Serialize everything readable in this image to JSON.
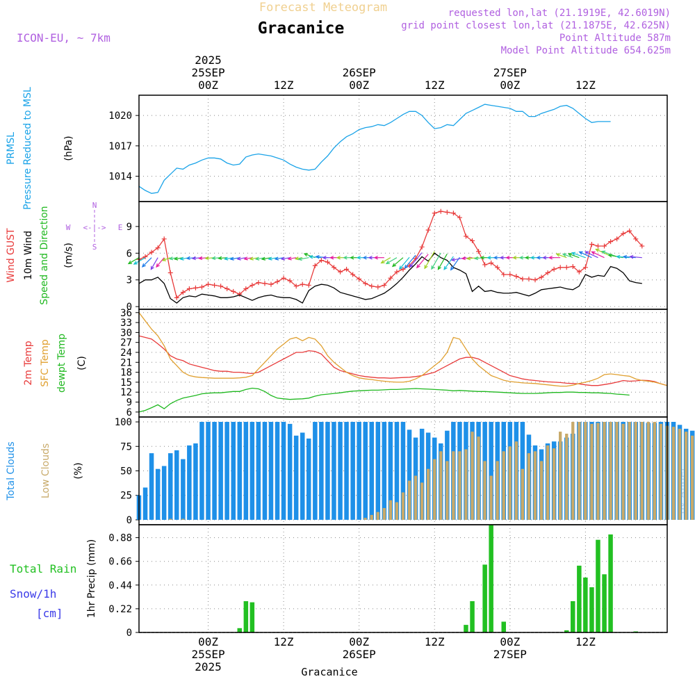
{
  "colors": {
    "pressure": "#1aa3e8",
    "gust": "#e83a3a",
    "wind": "#000000",
    "direction": "#1fb81f",
    "temp2m": "#e83a3a",
    "sfc_temp": "#e0a030",
    "dewpt": "#1fb81f",
    "total_cloud": "#1e90e8",
    "low_cloud": "#c8aa6a",
    "rain": "#22c022",
    "snow": "#3a3ae8",
    "meta": "#b060e0",
    "title_faint": "#f0d090",
    "model": "#b060e0"
  },
  "header": {
    "title_top": "Forecast Meteogram",
    "station": "Gracanice",
    "model": "ICON-EU, ~ 7km",
    "requested": "requested lon,lat (21.1919E, 42.6019N)",
    "gridpoint": "grid point closest lon,lat (21.1875E, 42.625N)",
    "point_alt": "Point Altitude 587m",
    "model_alt": "Model Point Altitude 654.625m"
  },
  "time_axis": {
    "top_labels": [
      {
        "lines": [
          "2025",
          "25SEP",
          "00Z"
        ],
        "hour": 24
      },
      {
        "lines": [
          "12Z"
        ],
        "hour": 36
      },
      {
        "lines": [
          "26SEP",
          "00Z"
        ],
        "hour": 48
      },
      {
        "lines": [
          "12Z"
        ],
        "hour": 60
      },
      {
        "lines": [
          "27SEP",
          "00Z"
        ],
        "hour": 72
      },
      {
        "lines": [
          "12Z"
        ],
        "hour": 84
      }
    ],
    "bottom_labels": [
      {
        "lines": [
          "00Z",
          "25SEP",
          "2025"
        ],
        "hour": 24
      },
      {
        "lines": [
          "12Z"
        ],
        "hour": 36
      },
      {
        "lines": [
          "00Z",
          "26SEP"
        ],
        "hour": 48
      },
      {
        "lines": [
          "12Z"
        ],
        "hour": 60
      },
      {
        "lines": [
          "00Z",
          "27SEP"
        ],
        "hour": 72
      },
      {
        "lines": [
          "12Z"
        ],
        "hour": 84
      }
    ],
    "footer": "Gracanice"
  },
  "compass": {
    "n": "N",
    "s": "S",
    "w": "W",
    "e": "E",
    "arrow": "<-|->"
  },
  "watermark": "by Angel",
  "chart_data": [
    {
      "type": "line",
      "id": "pressure",
      "ylabel_lines": [
        "PRMSL",
        "Pressure Reduced to MSL"
      ],
      "unit": "(hPa)",
      "ylim": [
        1011.5,
        1022
      ],
      "yticks": [
        1014,
        1017,
        1020
      ],
      "x_start": 13,
      "x_step": 1,
      "series": [
        {
          "name": "PRMSL",
          "values": [
            1013.0,
            1012.6,
            1012.3,
            1012.4,
            1013.6,
            1014.2,
            1014.8,
            1014.7,
            1015.1,
            1015.3,
            1015.6,
            1015.8,
            1015.8,
            1015.7,
            1015.3,
            1015.1,
            1015.2,
            1015.9,
            1016.1,
            1016.2,
            1016.1,
            1016.0,
            1015.8,
            1015.6,
            1015.2,
            1014.9,
            1014.7,
            1014.6,
            1014.7,
            1015.4,
            1016.0,
            1016.8,
            1017.4,
            1017.9,
            1018.2,
            1018.6,
            1018.8,
            1018.9,
            1019.1,
            1019.0,
            1019.3,
            1019.7,
            1020.1,
            1020.4,
            1020.4,
            1020.0,
            1019.3,
            1018.7,
            1018.8,
            1019.1,
            1019.0,
            1019.6,
            1020.2,
            1020.5,
            1020.8,
            1021.1,
            1021.0,
            1020.9,
            1020.8,
            1020.7,
            1020.4,
            1020.4,
            1019.9,
            1019.9,
            1020.2,
            1020.4,
            1020.6,
            1020.9,
            1021.0,
            1020.7,
            1020.2,
            1019.7,
            1019.3,
            1019.4,
            1019.4,
            1019.4
          ]
        }
      ]
    },
    {
      "type": "line",
      "id": "wind",
      "ylabel_lines": [
        "Wind GUST",
        "10m Wind",
        "Speed and Direction"
      ],
      "unit": "(m/s)",
      "ylim": [
        -0.3,
        11.8
      ],
      "yticks": [
        0,
        3,
        6,
        9
      ],
      "x_start": 13,
      "x_step": 1,
      "series": [
        {
          "name": "Wind GUST",
          "values": [
            5.3,
            5.6,
            6.1,
            6.6,
            7.6,
            3.8,
            1.0,
            1.6,
            2.0,
            2.1,
            2.2,
            2.5,
            2.4,
            2.3,
            2.0,
            1.7,
            1.4,
            2.0,
            2.4,
            2.7,
            2.6,
            2.5,
            2.8,
            3.2,
            2.9,
            2.3,
            2.5,
            2.4,
            4.6,
            5.2,
            5.0,
            4.4,
            3.9,
            4.2,
            3.6,
            3.1,
            2.6,
            2.3,
            2.2,
            2.4,
            3.2,
            3.9,
            4.2,
            4.6,
            5.4,
            6.7,
            8.6,
            10.5,
            10.7,
            10.6,
            10.5,
            10.0,
            7.9,
            7.4,
            6.2,
            4.7,
            4.9,
            4.4,
            3.6,
            3.6,
            3.4,
            3.1,
            3.1,
            3.0,
            3.3,
            3.8,
            4.2,
            4.4,
            4.4,
            4.5,
            3.9,
            4.4,
            7.0,
            6.8,
            6.8,
            7.3,
            7.6,
            8.2,
            8.5,
            7.6,
            6.8
          ]
        },
        {
          "name": "10m Wind",
          "values": [
            2.6,
            3.0,
            3.0,
            3.3,
            2.6,
            0.9,
            0.4,
            1.0,
            1.2,
            1.1,
            1.4,
            1.3,
            1.2,
            1.0,
            1.0,
            1.1,
            1.3,
            1.0,
            0.7,
            1.0,
            1.2,
            1.3,
            1.1,
            1.0,
            1.0,
            0.8,
            0.4,
            1.8,
            2.3,
            2.5,
            2.4,
            2.1,
            1.6,
            1.4,
            1.2,
            1.0,
            0.8,
            0.9,
            1.2,
            1.5,
            2.0,
            2.6,
            3.3,
            4.1,
            4.8,
            5.6,
            5.1,
            6.0,
            5.5,
            5.2,
            4.4,
            4.1,
            3.7,
            1.7,
            2.3,
            1.7,
            1.8,
            1.6,
            1.5,
            1.5,
            1.6,
            1.4,
            1.2,
            1.5,
            1.9,
            2.0,
            2.1,
            2.2,
            2.0,
            1.9,
            2.3,
            3.6,
            3.3,
            3.5,
            3.4,
            4.5,
            4.3,
            3.8,
            2.9,
            2.7,
            2.6
          ]
        },
        {
          "name": "Direction (deg, to)",
          "values": [
            60,
            60,
            45,
            30,
            40,
            70,
            80,
            80,
            80,
            85,
            85,
            85,
            85,
            85,
            85,
            80,
            80,
            80,
            80,
            80,
            80,
            80,
            80,
            80,
            80,
            80,
            80,
            80,
            110,
            95,
            95,
            90,
            90,
            90,
            90,
            90,
            90,
            90,
            90,
            90,
            60,
            60,
            50,
            40,
            40,
            40,
            40,
            30,
            30,
            30,
            35,
            35,
            80,
            85,
            85,
            85,
            90,
            90,
            90,
            90,
            90,
            90,
            90,
            90,
            90,
            90,
            90,
            90,
            110,
            110,
            110,
            110,
            115,
            115,
            115,
            115,
            110,
            100,
            95,
            95,
            95
          ]
        }
      ]
    },
    {
      "type": "line",
      "id": "temperature",
      "ylabel_lines": [
        "2m Temp",
        "SFC Temp",
        "dewpt Temp"
      ],
      "unit": "(C)",
      "ylim": [
        4.5,
        37
      ],
      "yticks": [
        6,
        9,
        12,
        15,
        18,
        21,
        24,
        27,
        30,
        33,
        36
      ],
      "x_start": 13,
      "x_step": 1,
      "series": [
        {
          "name": "2m Temp",
          "values": [
            29,
            28.5,
            28,
            26.6,
            25,
            23,
            22,
            21.5,
            20.5,
            20,
            19.5,
            19,
            18.5,
            18.3,
            18.3,
            18,
            18,
            17.8,
            17.6,
            18,
            19,
            20,
            21,
            22,
            23,
            24,
            24,
            24.5,
            24.3,
            23.5,
            21.5,
            19.5,
            18.5,
            18,
            17.5,
            17,
            16.7,
            16.5,
            16.3,
            16.3,
            16.2,
            16.3,
            16.4,
            16.5,
            16.7,
            17,
            17.5,
            18,
            19,
            20,
            21,
            22,
            22.5,
            22.5,
            22,
            21,
            20,
            19,
            18,
            17,
            16.5,
            16,
            15.7,
            15.5,
            15.3,
            15.1,
            15,
            14.9,
            14.7,
            14.6,
            14.5,
            14.2,
            14,
            14,
            14.3,
            14.6,
            15,
            15.5,
            15.3,
            15.4,
            15.6,
            15.5,
            15.2,
            14.5,
            14.0
          ]
        },
        {
          "name": "SFC Temp",
          "values": [
            36,
            33.5,
            31,
            29,
            26,
            22,
            20,
            18,
            17,
            16.6,
            16.4,
            16.3,
            16.2,
            16.2,
            16.2,
            16.2,
            16.3,
            16.5,
            17,
            19,
            21,
            23,
            25,
            26.5,
            28,
            28.5,
            27.5,
            28.5,
            28,
            26,
            23,
            21,
            19.5,
            18,
            17,
            16.3,
            16,
            15.8,
            15.5,
            15.3,
            15.1,
            15,
            15,
            15.3,
            16,
            17,
            18.5,
            20,
            21.5,
            24,
            28.5,
            28,
            25,
            22,
            20,
            18.5,
            17,
            16.3,
            15.6,
            15.2,
            15,
            14.8,
            14.7,
            14.6,
            14.4,
            14.2,
            14,
            13.8,
            13.8,
            14.1,
            14.6,
            15,
            15.5,
            16.2,
            17.3,
            17.5,
            17.3,
            17.0,
            16.8,
            16.0,
            15.5,
            15.3,
            15,
            14.5,
            14.0
          ]
        },
        {
          "name": "dewpt Temp",
          "values": [
            6,
            6.5,
            7.3,
            8.2,
            7.0,
            8.5,
            9.5,
            10.2,
            10.6,
            11,
            11.5,
            11.7,
            11.8,
            11.8,
            12,
            12.2,
            12.2,
            12.8,
            13.2,
            13.0,
            12.2,
            11,
            10.2,
            10,
            9.8,
            9.9,
            10,
            10.2,
            10.8,
            11.2,
            11.4,
            11.6,
            11.8,
            12.1,
            12.3,
            12.4,
            12.5,
            12.6,
            12.6,
            12.7,
            12.8,
            12.8,
            12.9,
            13,
            13.1,
            13,
            12.9,
            12.8,
            12.7,
            12.6,
            12.4,
            12.5,
            12.4,
            12.3,
            12.2,
            12.2,
            12.1,
            12,
            11.9,
            11.8,
            11.7,
            11.6,
            11.6,
            11.6,
            11.7,
            11.8,
            11.9,
            11.9,
            12,
            12,
            11.9,
            11.9,
            11.8,
            11.8,
            11.7,
            11.6,
            11.4,
            11.3,
            11.1
          ]
        }
      ]
    },
    {
      "type": "bar",
      "id": "clouds",
      "ylabel_lines": [
        "Total Clouds",
        "Low Clouds"
      ],
      "unit": "(%)",
      "ylim": [
        -5,
        105
      ],
      "yticks": [
        0,
        25,
        50,
        75,
        100
      ],
      "x_start": 13,
      "x_step": 1,
      "series": [
        {
          "name": "Total Clouds",
          "values": [
            25,
            33,
            68,
            52,
            55,
            68,
            71,
            62,
            76,
            78,
            100,
            100,
            100,
            100,
            100,
            100,
            100,
            100,
            100,
            100,
            100,
            100,
            100,
            100,
            98,
            86,
            89,
            83,
            100,
            100,
            100,
            100,
            100,
            100,
            100,
            100,
            100,
            100,
            100,
            100,
            100,
            100,
            100,
            92,
            84,
            93,
            89,
            84,
            78,
            91,
            100,
            100,
            100,
            100,
            100,
            100,
            100,
            100,
            100,
            100,
            100,
            100,
            87,
            76,
            72,
            78,
            80,
            80,
            84,
            88,
            100,
            100,
            100,
            100,
            100,
            100,
            100,
            100,
            100,
            100,
            100,
            99,
            99,
            100,
            100,
            100,
            97,
            93,
            91
          ]
        },
        {
          "name": "Low Clouds",
          "values": [
            0,
            0,
            0,
            0,
            0,
            1,
            0,
            1,
            0,
            0,
            0,
            0,
            0,
            0,
            0,
            0,
            0,
            0,
            0,
            0,
            0,
            0,
            0,
            0,
            0,
            0,
            0,
            0,
            0,
            0,
            0,
            0,
            0,
            0,
            0,
            0,
            2,
            5,
            8,
            12,
            20,
            18,
            28,
            40,
            45,
            38,
            52,
            62,
            70,
            60,
            70,
            70,
            72,
            90,
            85,
            60,
            45,
            60,
            70,
            75,
            80,
            52,
            68,
            70,
            60,
            76,
            73,
            90,
            88,
            100,
            100,
            100,
            98,
            99,
            100,
            100,
            100,
            98,
            100,
            100,
            100,
            100,
            100,
            98,
            96,
            95,
            93,
            90,
            86
          ]
        }
      ]
    },
    {
      "type": "bar",
      "id": "precip",
      "ylabel_lines": [
        "Total Rain",
        "Snow/1h",
        "[cm]"
      ],
      "unit": "1hr Precip (mm)",
      "ylim": [
        0,
        1.0
      ],
      "yticks": [
        0,
        0.22,
        0.44,
        0.66,
        0.88
      ],
      "x_start": 13,
      "x_step": 1,
      "series": [
        {
          "name": "Total Rain",
          "values": [
            0,
            0,
            0,
            0,
            0,
            0,
            0,
            0,
            0,
            0,
            0,
            0,
            0,
            0,
            0,
            0,
            0.04,
            0.29,
            0.28,
            0,
            0,
            0,
            0,
            0,
            0,
            0,
            0,
            0,
            0,
            0,
            0,
            0,
            0,
            0,
            0,
            0,
            0,
            0,
            0,
            0,
            0,
            0,
            0,
            0,
            0,
            0,
            0,
            0,
            0,
            0,
            0,
            0,
            0.07,
            0.29,
            0,
            0.63,
            1.0,
            0,
            0.1,
            0,
            0,
            0,
            0,
            0,
            0,
            0,
            0,
            0,
            0.02,
            0.29,
            0.62,
            0.51,
            0.42,
            0.86,
            0.54,
            0.91,
            0,
            0,
            0,
            0.01,
            0,
            0,
            0,
            0,
            0,
            0
          ]
        },
        {
          "name": "Snow/1h",
          "values": []
        }
      ]
    }
  ]
}
